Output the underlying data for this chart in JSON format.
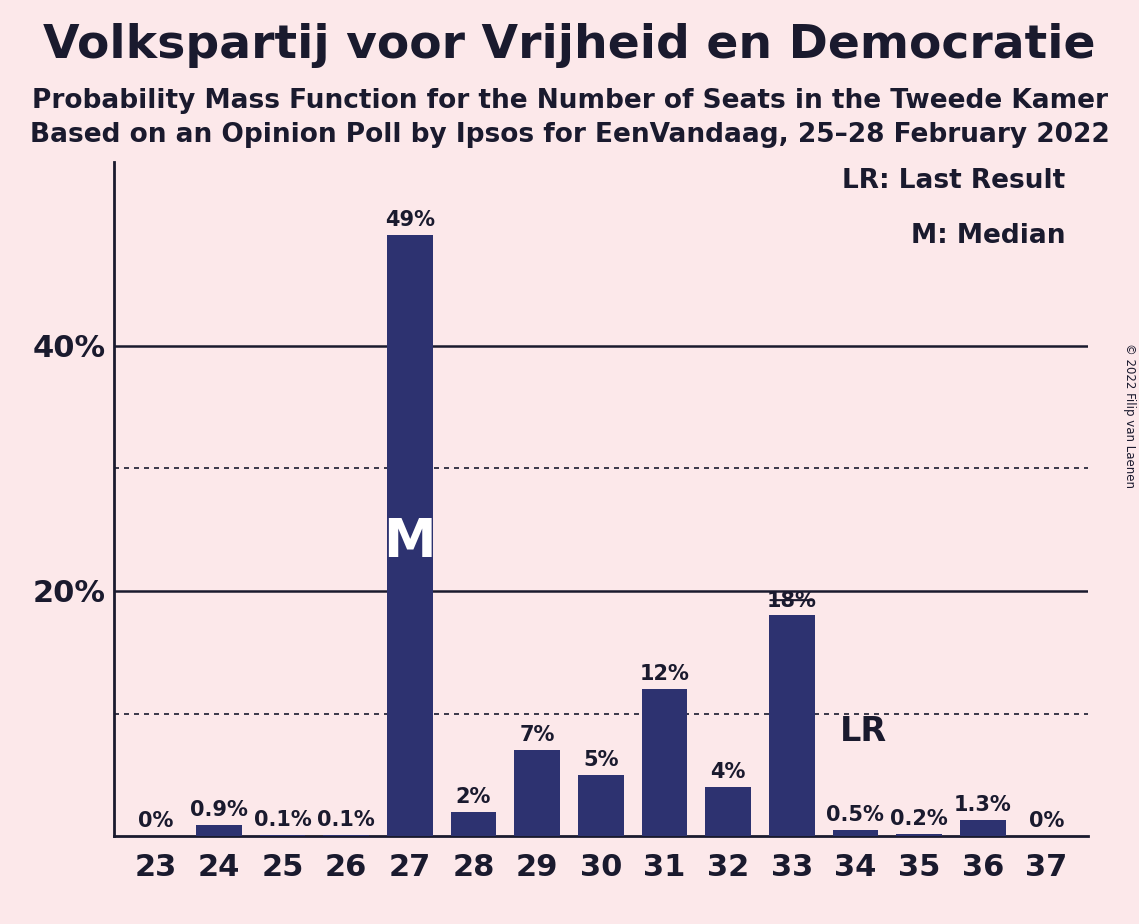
{
  "title": "Volkspartij voor Vrijheid en Democratie",
  "subtitle1": "Probability Mass Function for the Number of Seats in the Tweede Kamer",
  "subtitle2": "Based on an Opinion Poll by Ipsos for EenVandaag, 25–28 February 2022",
  "copyright": "© 2022 Filip van Laenen",
  "categories": [
    23,
    24,
    25,
    26,
    27,
    28,
    29,
    30,
    31,
    32,
    33,
    34,
    35,
    36,
    37
  ],
  "values": [
    0.0,
    0.9,
    0.1,
    0.1,
    49.0,
    2.0,
    7.0,
    5.0,
    12.0,
    4.0,
    18.0,
    0.5,
    0.2,
    1.3,
    0.0
  ],
  "labels": [
    "0%",
    "0.9%",
    "0.1%",
    "0.1%",
    "49%",
    "2%",
    "7%",
    "5%",
    "12%",
    "4%",
    "18%",
    "0.5%",
    "0.2%",
    "1.3%",
    "0%"
  ],
  "bar_color": "#2d3270",
  "background_color": "#fce8ea",
  "median_seat": 27,
  "lr_seat": 33,
  "ylim": [
    0,
    55
  ],
  "yticks": [
    20,
    40
  ],
  "solid_lines": [
    20,
    40
  ],
  "dotted_lines": [
    10,
    30
  ],
  "legend_lr": "LR: Last Result",
  "legend_m": "M: Median",
  "title_fontsize": 34,
  "subtitle_fontsize": 19,
  "bar_label_fontsize": 15,
  "axis_tick_fontsize": 22,
  "legend_fontsize": 19,
  "lr_label_fontsize": 24,
  "m_fontsize": 38
}
